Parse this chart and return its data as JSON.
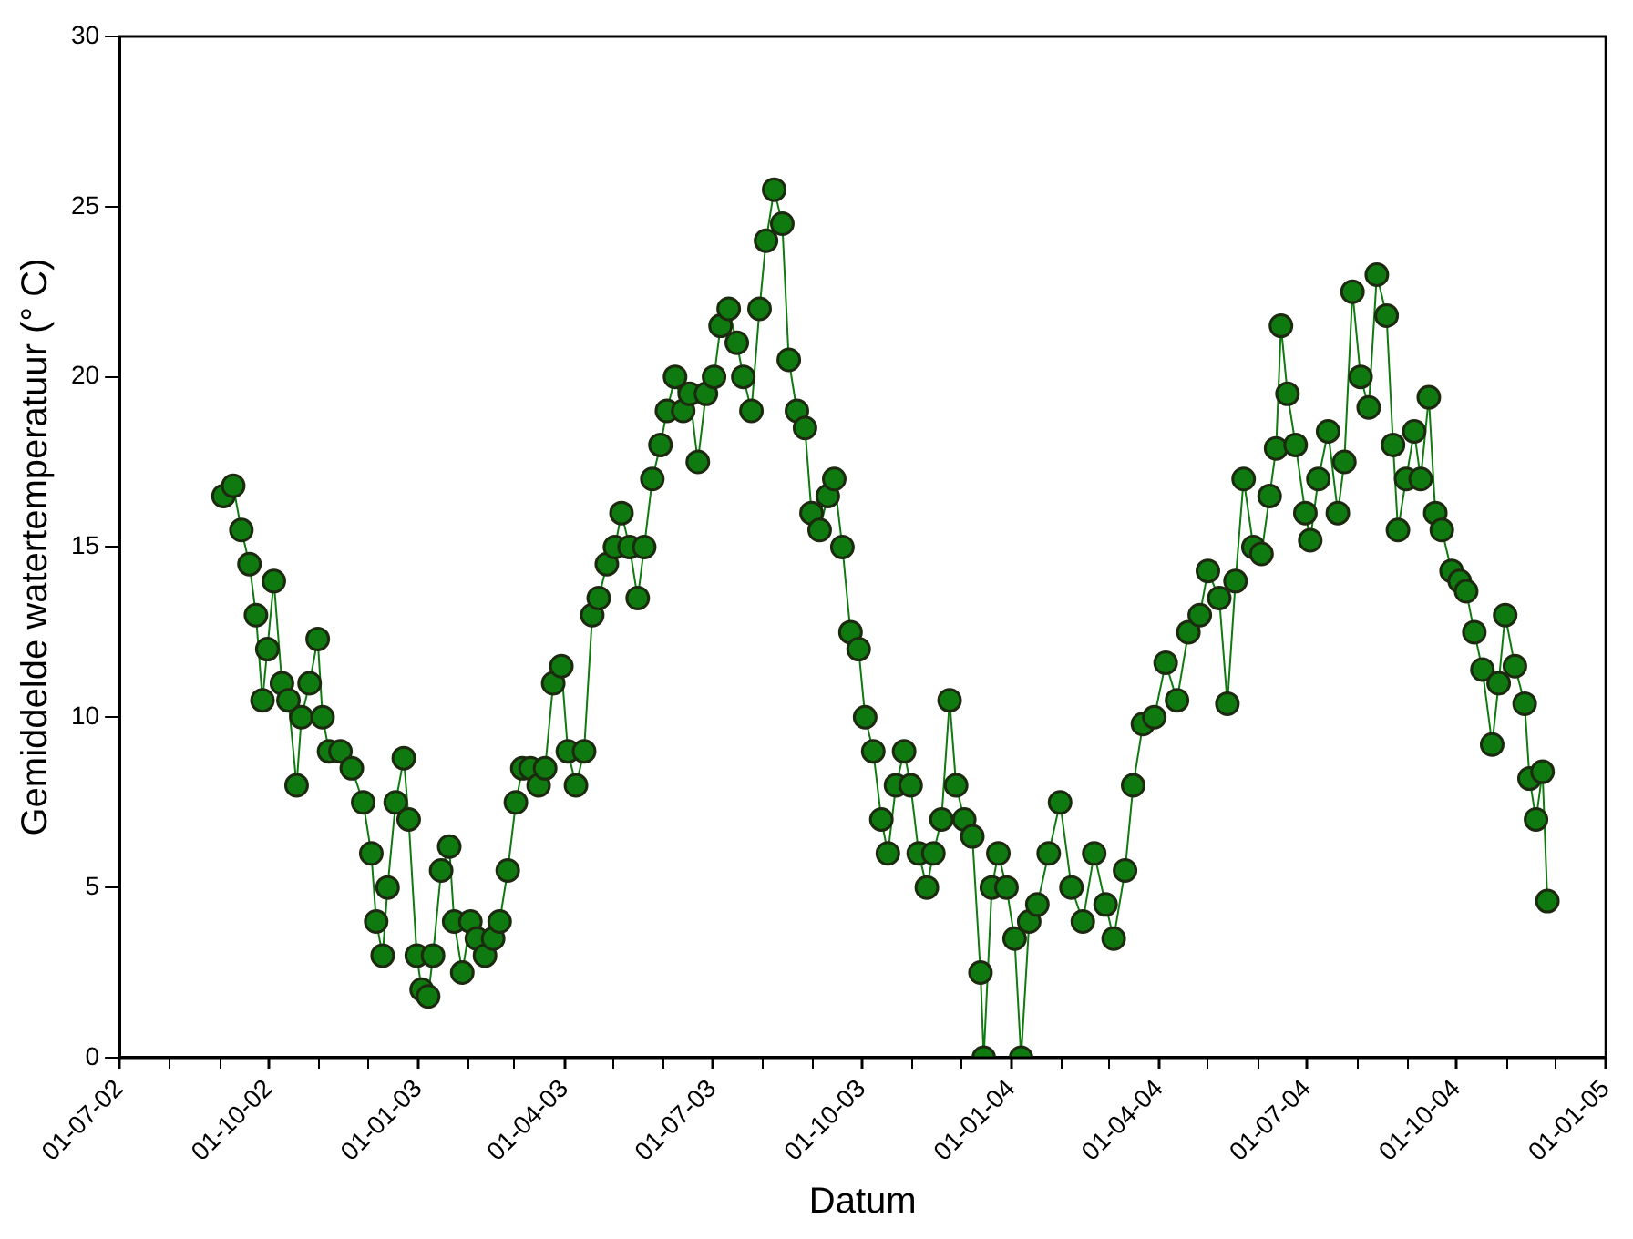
{
  "chart_data": {
    "type": "line",
    "xlabel": "Datum",
    "ylabel": "Gemiddelde watertemperatuur (° C)",
    "xlim": [
      "2002-07-01",
      "2005-01-01"
    ],
    "xticks": [
      {
        "value": "2002-07-01",
        "label": "01-07-02"
      },
      {
        "value": "2002-08-01",
        "label": null
      },
      {
        "value": "2002-09-01",
        "label": null
      },
      {
        "value": "2002-10-01",
        "label": "01-10-02"
      },
      {
        "value": "2002-11-01",
        "label": null
      },
      {
        "value": "2002-12-01",
        "label": null
      },
      {
        "value": "2003-01-01",
        "label": "01-01-03"
      },
      {
        "value": "2003-02-01",
        "label": null
      },
      {
        "value": "2003-03-01",
        "label": null
      },
      {
        "value": "2003-04-01",
        "label": "01-04-03"
      },
      {
        "value": "2003-05-01",
        "label": null
      },
      {
        "value": "2003-06-01",
        "label": null
      },
      {
        "value": "2003-07-01",
        "label": "01-07-03"
      },
      {
        "value": "2003-08-01",
        "label": null
      },
      {
        "value": "2003-09-01",
        "label": null
      },
      {
        "value": "2003-10-01",
        "label": "01-10-03"
      },
      {
        "value": "2003-11-01",
        "label": null
      },
      {
        "value": "2003-12-01",
        "label": null
      },
      {
        "value": "2004-01-01",
        "label": "01-01-04"
      },
      {
        "value": "2004-02-01",
        "label": null
      },
      {
        "value": "2004-03-01",
        "label": null
      },
      {
        "value": "2004-04-01",
        "label": "01-04-04"
      },
      {
        "value": "2004-05-01",
        "label": null
      },
      {
        "value": "2004-06-01",
        "label": null
      },
      {
        "value": "2004-07-01",
        "label": "01-07-04"
      },
      {
        "value": "2004-08-01",
        "label": null
      },
      {
        "value": "2004-09-01",
        "label": null
      },
      {
        "value": "2004-10-01",
        "label": "01-10-04"
      },
      {
        "value": "2004-11-01",
        "label": null
      },
      {
        "value": "2004-12-01",
        "label": null
      },
      {
        "value": "2005-01-01",
        "label": "01-01-05"
      }
    ],
    "ylim": [
      0,
      30
    ],
    "yticks": [
      0,
      5,
      10,
      15,
      20,
      25,
      30
    ],
    "grid": false,
    "legend": false,
    "marker": "circle",
    "line_style": "solid",
    "x": [
      "2002-09-03",
      "2002-09-09",
      "2002-09-14",
      "2002-09-19",
      "2002-09-23",
      "2002-09-27",
      "2002-09-30",
      "2002-10-04",
      "2002-10-09",
      "2002-10-13",
      "2002-10-18",
      "2002-10-21",
      "2002-10-26",
      "2002-10-31",
      "2002-11-03",
      "2002-11-07",
      "2002-11-14",
      "2002-11-21",
      "2002-11-28",
      "2002-12-03",
      "2002-12-06",
      "2002-12-10",
      "2002-12-13",
      "2002-12-18",
      "2002-12-23",
      "2002-12-26",
      "2002-12-31",
      "2003-01-03",
      "2003-01-07",
      "2003-01-10",
      "2003-01-15",
      "2003-01-20",
      "2003-01-23",
      "2003-01-28",
      "2003-02-02",
      "2003-02-06",
      "2003-02-11",
      "2003-02-16",
      "2003-02-20",
      "2003-02-25",
      "2003-03-02",
      "2003-03-06",
      "2003-03-11",
      "2003-03-16",
      "2003-03-20",
      "2003-03-25",
      "2003-03-30",
      "2003-04-03",
      "2003-04-08",
      "2003-04-13",
      "2003-04-18",
      "2003-04-22",
      "2003-04-27",
      "2003-05-02",
      "2003-05-06",
      "2003-05-11",
      "2003-05-16",
      "2003-05-20",
      "2003-05-25",
      "2003-05-30",
      "2003-06-03",
      "2003-06-08",
      "2003-06-13",
      "2003-06-17",
      "2003-06-22",
      "2003-06-27",
      "2003-07-02",
      "2003-07-06",
      "2003-07-11",
      "2003-07-16",
      "2003-07-20",
      "2003-07-25",
      "2003-07-30",
      "2003-08-03",
      "2003-08-08",
      "2003-08-13",
      "2003-08-17",
      "2003-08-22",
      "2003-08-27",
      "2003-08-31",
      "2003-09-05",
      "2003-09-10",
      "2003-09-14",
      "2003-09-19",
      "2003-09-24",
      "2003-09-29",
      "2003-10-03",
      "2003-10-08",
      "2003-10-13",
      "2003-10-17",
      "2003-10-22",
      "2003-10-27",
      "2003-10-31",
      "2003-11-05",
      "2003-11-10",
      "2003-11-14",
      "2003-11-19",
      "2003-11-24",
      "2003-11-28",
      "2003-12-03",
      "2003-12-08",
      "2003-12-13",
      "2003-12-15",
      "2003-12-20",
      "2003-12-24",
      "2003-12-29",
      "2004-01-03",
      "2004-01-07",
      "2004-01-12",
      "2004-01-17",
      "2004-01-24",
      "2004-01-31",
      "2004-02-07",
      "2004-02-14",
      "2004-02-21",
      "2004-02-28",
      "2004-03-04",
      "2004-03-11",
      "2004-03-16",
      "2004-03-22",
      "2004-03-29",
      "2004-04-05",
      "2004-04-12",
      "2004-04-19",
      "2004-04-26",
      "2004-05-01",
      "2004-05-08",
      "2004-05-13",
      "2004-05-18",
      "2004-05-23",
      "2004-05-29",
      "2004-06-03",
      "2004-06-08",
      "2004-06-12",
      "2004-06-15",
      "2004-06-19",
      "2004-06-24",
      "2004-06-30",
      "2004-07-03",
      "2004-07-08",
      "2004-07-14",
      "2004-07-20",
      "2004-07-24",
      "2004-07-29",
      "2004-08-03",
      "2004-08-08",
      "2004-08-13",
      "2004-08-19",
      "2004-08-23",
      "2004-08-26",
      "2004-08-31",
      "2004-09-05",
      "2004-09-09",
      "2004-09-14",
      "2004-09-18",
      "2004-09-22",
      "2004-09-28",
      "2004-10-03",
      "2004-10-07",
      "2004-10-12",
      "2004-10-17",
      "2004-10-23",
      "2004-10-27",
      "2004-10-31",
      "2004-11-06",
      "2004-11-12",
      "2004-11-15",
      "2004-11-19",
      "2004-11-23",
      "2004-11-26"
    ],
    "series": [
      {
        "color": "#0f7a0f",
        "values": [
          16.5,
          16.8,
          15.5,
          14.5,
          13,
          10.5,
          12,
          14,
          11,
          10.5,
          8,
          10,
          11,
          12.3,
          10,
          9,
          9,
          8.5,
          7.5,
          6,
          4,
          3,
          5,
          7.5,
          8.8,
          7,
          3,
          2,
          1.8,
          3,
          5.5,
          6.2,
          4,
          2.5,
          4,
          3.5,
          3,
          3.5,
          4,
          5.5,
          7.5,
          8.5,
          8.5,
          8,
          8.5,
          11,
          11.5,
          9,
          8,
          9,
          13,
          13.5,
          14.5,
          15,
          16,
          15,
          13.5,
          15,
          17,
          18,
          19,
          20,
          19,
          19.5,
          17.5,
          19.5,
          20,
          21.5,
          22,
          21,
          20,
          19,
          22,
          24,
          25.5,
          24.5,
          20.5,
          19,
          18.5,
          16,
          15.5,
          16.5,
          17,
          15,
          12.5,
          12,
          10,
          9,
          7,
          6,
          8,
          9,
          8,
          6,
          5,
          6,
          7,
          10.5,
          8,
          7,
          6.5,
          2.5,
          0,
          5,
          6,
          5,
          3.5,
          0,
          4,
          4.5,
          6,
          7.5,
          5,
          4,
          6,
          4.5,
          3.5,
          5.5,
          8,
          9.8,
          10,
          11.6,
          10.5,
          12.5,
          13,
          14.3,
          13.5,
          10.4,
          14,
          17,
          15,
          14.8,
          16.5,
          17.9,
          21.5,
          19.5,
          18,
          16,
          15.2,
          17,
          18.4,
          16,
          17.5,
          22.5,
          20,
          19.1,
          23,
          21.8,
          18,
          15.5,
          17,
          18.4,
          17,
          19.4,
          16,
          15.5,
          14.3,
          14,
          13.7,
          12.5,
          11.4,
          9.2,
          11,
          13,
          11.5,
          10.4,
          8.2,
          7,
          8.4,
          4.6
        ]
      }
    ]
  }
}
